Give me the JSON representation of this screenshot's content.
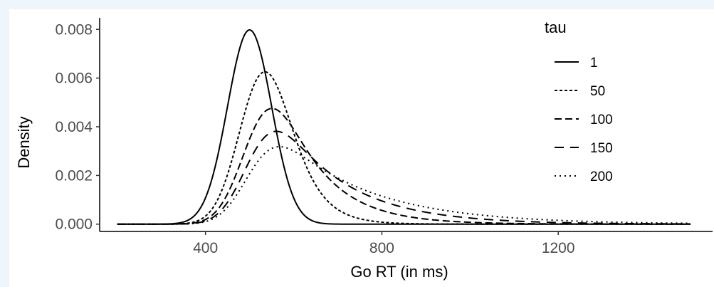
{
  "chart_data": {
    "type": "line",
    "xlabel": "Go RT (in ms)",
    "ylabel": "Density",
    "xlim": [
      160,
      1550
    ],
    "ylim": [
      -0.0003,
      0.0083
    ],
    "x_ticks": [
      400,
      800,
      1200
    ],
    "x_tick_labels": [
      "400",
      "800",
      "1200"
    ],
    "y_ticks": [
      0.0,
      0.002,
      0.004,
      0.006,
      0.008
    ],
    "y_tick_labels": [
      "0.000",
      "0.002",
      "0.004",
      "0.006",
      "0.008"
    ],
    "grid": false,
    "legend": {
      "title": "tau",
      "position": "top-right"
    },
    "distribution": "ex-gaussian",
    "mu": 500,
    "sigma": 50,
    "x_range": [
      200,
      1500
    ],
    "series": [
      {
        "name": "1",
        "tau": 1,
        "dash": "solid"
      },
      {
        "name": "50",
        "tau": 50,
        "dash": "dotted-dense"
      },
      {
        "name": "100",
        "tau": 100,
        "dash": "dashed"
      },
      {
        "name": "150",
        "tau": 150,
        "dash": "long-dashed"
      },
      {
        "name": "200",
        "tau": 200,
        "dash": "dotted"
      }
    ]
  }
}
